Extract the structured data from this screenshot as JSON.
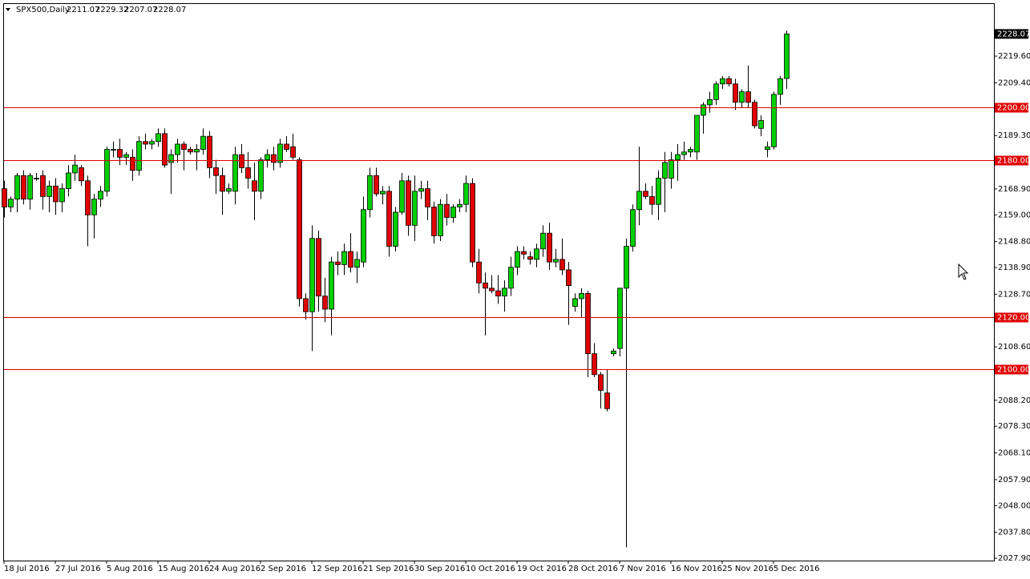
{
  "chart_data": {
    "type": "candlestick",
    "title": "SPX500,Daily",
    "categories": [
      "18 Jul 2016",
      null,
      null,
      null,
      null,
      null,
      null,
      null,
      "27 Jul 2016",
      null,
      null,
      null,
      null,
      null,
      null,
      null,
      "5 Aug 2016",
      null,
      null,
      null,
      null,
      null,
      null,
      null,
      "15 Aug 2016",
      null,
      null,
      null,
      null,
      null,
      null,
      null,
      "24 Aug 2016",
      null,
      null,
      null,
      null,
      null,
      null,
      null,
      "2 Sep 2016",
      null,
      null,
      null,
      null,
      null,
      null,
      null,
      "12 Sep 2016",
      null,
      null,
      null,
      null,
      null,
      null,
      null,
      "21 Sep 2016",
      null,
      null,
      null,
      null,
      null,
      null,
      null,
      "30 Sep 2016",
      null,
      null,
      null,
      null,
      null,
      null,
      null,
      "10 Oct 2016",
      null,
      null,
      null,
      null,
      null,
      null,
      null,
      "19 Oct 2016",
      null,
      null,
      null,
      null,
      null,
      null,
      null,
      "28 Oct 2016",
      null,
      null,
      null,
      null,
      null,
      null,
      null,
      "7 Nov 2016",
      null,
      null,
      null,
      null,
      null,
      null,
      null,
      "16 Nov 2016",
      null,
      null,
      null,
      null,
      null,
      null,
      null,
      "25 Nov 2016",
      null,
      null,
      null,
      null,
      null,
      null,
      null,
      "5 Dec 2016",
      null,
      null
    ],
    "ohlc": [
      [
        2169,
        2172,
        2158,
        2162
      ],
      [
        2162,
        2166,
        2160,
        2165
      ],
      [
        2165,
        2175,
        2160,
        2174
      ],
      [
        2174,
        2176,
        2163,
        2165
      ],
      [
        2165,
        2175,
        2161,
        2174
      ],
      [
        2173,
        2175,
        2172,
        2173
      ],
      [
        2174,
        2176,
        2161,
        2166
      ],
      [
        2166,
        2172,
        2160,
        2170
      ],
      [
        2170,
        2173,
        2159,
        2164
      ],
      [
        2164,
        2171,
        2160,
        2169
      ],
      [
        2169,
        2178,
        2166,
        2175
      ],
      [
        2175,
        2182,
        2172,
        2178
      ],
      [
        2177,
        2178,
        2170,
        2172
      ],
      [
        2172,
        2174,
        2147,
        2159
      ],
      [
        2159,
        2167,
        2150,
        2165
      ],
      [
        2165,
        2170,
        2162,
        2168
      ],
      [
        2168,
        2185,
        2166,
        2184
      ],
      [
        2184,
        2187,
        2181,
        2184
      ],
      [
        2184,
        2188,
        2178,
        2181
      ],
      [
        2181,
        2183,
        2178,
        2182
      ],
      [
        2181,
        2184,
        2172,
        2176
      ],
      [
        2176,
        2189,
        2174,
        2187
      ],
      [
        2187,
        2190,
        2184,
        2186
      ],
      [
        2186,
        2188,
        2184,
        2187
      ],
      [
        2187,
        2192,
        2185,
        2190
      ],
      [
        2190,
        2192,
        2177,
        2178
      ],
      [
        2179,
        2184,
        2167,
        2182
      ],
      [
        2182,
        2188,
        2179,
        2186
      ],
      [
        2186,
        2187,
        2176,
        2184
      ],
      [
        2184,
        2185,
        2182,
        2183
      ],
      [
        2183,
        2186,
        2176,
        2184
      ],
      [
        2184,
        2192,
        2182,
        2189
      ],
      [
        2189,
        2191,
        2173,
        2177
      ],
      [
        2177,
        2180,
        2167,
        2174
      ],
      [
        2174,
        2177,
        2159,
        2168
      ],
      [
        2168,
        2171,
        2167,
        2169
      ],
      [
        2168,
        2185,
        2163,
        2182
      ],
      [
        2182,
        2186,
        2175,
        2177
      ],
      [
        2177,
        2183,
        2169,
        2173
      ],
      [
        2172,
        2179,
        2157,
        2168
      ],
      [
        2168,
        2181,
        2165,
        2180
      ],
      [
        2180,
        2184,
        2177,
        2182
      ],
      [
        2182,
        2185,
        2176,
        2179
      ],
      [
        2179,
        2188,
        2177,
        2186
      ],
      [
        2186,
        2189,
        2183,
        2184
      ],
      [
        2185,
        2190,
        2180,
        2181
      ],
      [
        2180,
        2181,
        2124,
        2127
      ],
      [
        2127,
        2129,
        2119,
        2122
      ],
      [
        2122,
        2155,
        2107,
        2150
      ],
      [
        2150,
        2153,
        2122,
        2128
      ],
      [
        2128,
        2135,
        2118,
        2123
      ],
      [
        2123,
        2143,
        2113,
        2141
      ],
      [
        2141,
        2145,
        2136,
        2140
      ],
      [
        2140,
        2148,
        2136,
        2145
      ],
      [
        2145,
        2152,
        2137,
        2139
      ],
      [
        2139,
        2145,
        2133,
        2142
      ],
      [
        2141,
        2166,
        2139,
        2161
      ],
      [
        2161,
        2177,
        2158,
        2174
      ],
      [
        2174,
        2177,
        2166,
        2167
      ],
      [
        2167,
        2170,
        2163,
        2168
      ],
      [
        2168,
        2170,
        2143,
        2147
      ],
      [
        2147,
        2162,
        2145,
        2160
      ],
      [
        2160,
        2175,
        2159,
        2172
      ],
      [
        2172,
        2174,
        2151,
        2155
      ],
      [
        2155,
        2174,
        2149,
        2168
      ],
      [
        2168,
        2172,
        2165,
        2169
      ],
      [
        2169,
        2172,
        2157,
        2162
      ],
      [
        2162,
        2164,
        2148,
        2151
      ],
      [
        2151,
        2165,
        2149,
        2163
      ],
      [
        2163,
        2167,
        2155,
        2158
      ],
      [
        2158,
        2163,
        2156,
        2162
      ],
      [
        2162,
        2165,
        2160,
        2163
      ],
      [
        2163,
        2174,
        2160,
        2171
      ],
      [
        2171,
        2173,
        2139,
        2141
      ],
      [
        2141,
        2146,
        2129,
        2133
      ],
      [
        2133,
        2137,
        2113,
        2131
      ],
      [
        2131,
        2136,
        2129,
        2130
      ],
      [
        2130,
        2136,
        2125,
        2128
      ],
      [
        2128,
        2134,
        2122,
        2131
      ],
      [
        2131,
        2143,
        2128,
        2139
      ],
      [
        2139,
        2147,
        2136,
        2145
      ],
      [
        2145,
        2147,
        2142,
        2144
      ],
      [
        2143,
        2145,
        2140,
        2142
      ],
      [
        2142,
        2148,
        2139,
        2146
      ],
      [
        2146,
        2155,
        2143,
        2152
      ],
      [
        2152,
        2156,
        2138,
        2141
      ],
      [
        2141,
        2146,
        2139,
        2142
      ],
      [
        2142,
        2150,
        2136,
        2138
      ],
      [
        2138,
        2141,
        2117,
        2132
      ],
      [
        2124,
        2129,
        2122,
        2127
      ],
      [
        2127,
        2131,
        2120,
        2129
      ],
      [
        2129,
        2130,
        2097,
        2106
      ],
      [
        2106,
        2110,
        2097,
        2098
      ],
      [
        2098,
        2099,
        2085,
        2092
      ],
      [
        2091,
        2100,
        2084,
        2085
      ],
      [
        2106,
        2108,
        2105,
        2107
      ],
      [
        2108,
        2131,
        2105,
        2131
      ],
      [
        2131,
        2150,
        2032,
        2147
      ],
      [
        2147,
        2163,
        2145,
        2161
      ],
      [
        2161,
        2185,
        2155,
        2168
      ],
      [
        2168,
        2171,
        2165,
        2166
      ],
      [
        2166,
        2170,
        2159,
        2163
      ],
      [
        2163,
        2176,
        2157,
        2173
      ],
      [
        2173,
        2183,
        2160,
        2179
      ],
      [
        2173,
        2183,
        2169,
        2180
      ],
      [
        2180,
        2186,
        2172,
        2182
      ],
      [
        2182,
        2187,
        2180,
        2183
      ],
      [
        2183,
        2185,
        2181,
        2184
      ],
      [
        2183,
        2197,
        2180,
        2197
      ],
      [
        2197,
        2202,
        2190,
        2201
      ],
      [
        2201,
        2206,
        2198,
        2203
      ],
      [
        2203,
        2210,
        2201,
        2209
      ],
      [
        2209,
        2212,
        2207,
        2211
      ],
      [
        2211,
        2212,
        2208,
        2209
      ],
      [
        2209,
        2211,
        2199,
        2202
      ],
      [
        2202,
        2207,
        2200,
        2206
      ],
      [
        2206,
        2216,
        2200,
        2202
      ],
      [
        2202,
        2203,
        2192,
        2193
      ],
      [
        2192,
        2197,
        2189,
        2195
      ],
      [
        2184,
        2187,
        2181,
        2185
      ],
      [
        2185,
        2206,
        2184,
        2205
      ],
      [
        2205,
        2212,
        2201,
        2211
      ],
      [
        2211.07,
        2229.32,
        2207.07,
        2228.07
      ]
    ],
    "up_color": "#00d000",
    "down_color": "#e00000",
    "ylim": [
      2027,
      2239.5
    ],
    "yticks": [
      {
        "value": 2219.6,
        "label": "2219.60"
      },
      {
        "value": 2209.4,
        "label": "2209.40"
      },
      {
        "value": 2189.3,
        "label": "2189.30"
      },
      {
        "value": 2168.9,
        "label": "2168.90"
      },
      {
        "value": 2159,
        "label": "2159.00"
      },
      {
        "value": 2148.8,
        "label": "2148.80"
      },
      {
        "value": 2138.9,
        "label": "2138.90"
      },
      {
        "value": 2128.7,
        "label": "2128.70"
      },
      {
        "value": 2108.6,
        "label": "2108.60"
      },
      {
        "value": 2088.2,
        "label": "2088.20"
      },
      {
        "value": 2078.3,
        "label": "2078.30"
      },
      {
        "value": 2068.1,
        "label": "2068.10"
      },
      {
        "value": 2057.9,
        "label": "2057.90"
      },
      {
        "value": 2048,
        "label": "2048.00"
      },
      {
        "value": 2037.8,
        "label": "2037.80"
      },
      {
        "value": 2027.9,
        "label": "2027.90"
      }
    ],
    "levels": [
      {
        "value": 2200,
        "label": "2200.00"
      },
      {
        "value": 2180,
        "label": "2180.00"
      },
      {
        "value": 2120,
        "label": "2120.00"
      },
      {
        "value": 2100,
        "label": "2100.00"
      }
    ],
    "level_color": "#e00000"
  }
}
